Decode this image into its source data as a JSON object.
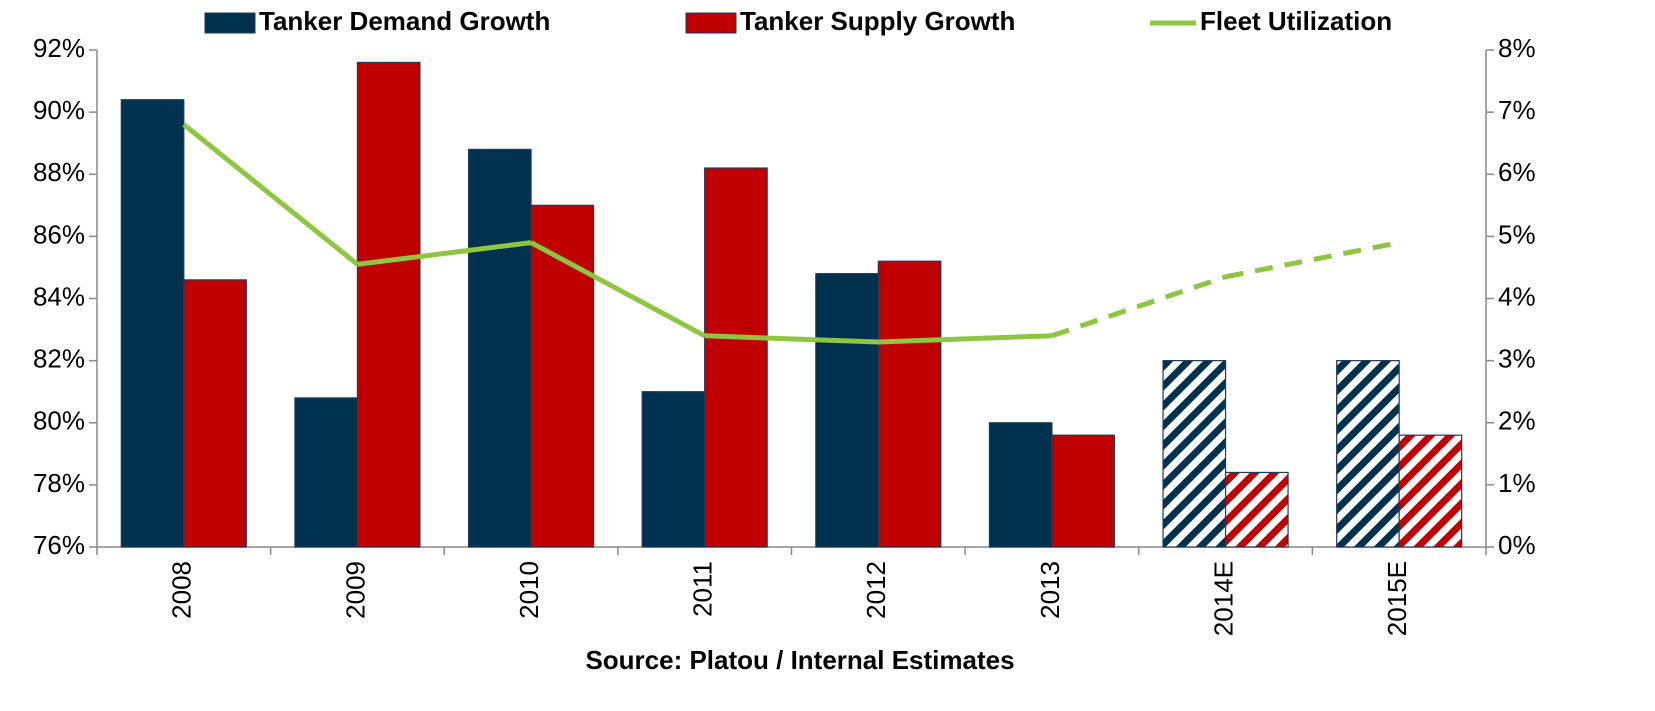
{
  "chart_data": {
    "type": "bar",
    "categories": [
      "2008",
      "2009",
      "2010",
      "2011",
      "2012",
      "2013",
      "2014E",
      "2015E"
    ],
    "estimated": [
      false,
      false,
      false,
      false,
      false,
      false,
      true,
      true
    ],
    "series": [
      {
        "name": "Tanker Demand Growth",
        "color": "#00324f",
        "type": "bar",
        "axis": "y2",
        "values": [
          7.2,
          2.4,
          6.4,
          2.5,
          4.4,
          2.0,
          3.0,
          3.0
        ]
      },
      {
        "name": "Tanker Supply Growth",
        "color": "#c00000",
        "type": "bar",
        "axis": "y2",
        "values": [
          4.3,
          7.8,
          5.5,
          6.1,
          4.6,
          1.8,
          1.2,
          1.8
        ]
      },
      {
        "name": "Fleet Utilization",
        "color": "#8dc63f",
        "type": "line",
        "axis": "y",
        "values": [
          89.6,
          85.1,
          85.8,
          82.8,
          82.6,
          82.8,
          84.7,
          85.8
        ]
      }
    ],
    "ylim": [
      76,
      92
    ],
    "yticks": [
      {
        "value": 76,
        "label": "76%"
      },
      {
        "value": 78,
        "label": "78%"
      },
      {
        "value": 80,
        "label": "80%"
      },
      {
        "value": 82,
        "label": "82%"
      },
      {
        "value": 84,
        "label": "84%"
      },
      {
        "value": 86,
        "label": "86%"
      },
      {
        "value": 88,
        "label": "88%"
      },
      {
        "value": 90,
        "label": "90%"
      },
      {
        "value": 92,
        "label": "92%"
      }
    ],
    "y2lim": [
      0,
      8
    ],
    "y2ticks": [
      {
        "value": 0,
        "label": "0%"
      },
      {
        "value": 1,
        "label": "1%"
      },
      {
        "value": 2,
        "label": "2%"
      },
      {
        "value": 3,
        "label": "3%"
      },
      {
        "value": 4,
        "label": "4%"
      },
      {
        "value": 5,
        "label": "5%"
      },
      {
        "value": 6,
        "label": "6%"
      },
      {
        "value": 7,
        "label": "7%"
      },
      {
        "value": 8,
        "label": "8%"
      }
    ],
    "xlabel": "Source: Platou / Internal Estimates",
    "legend": "top"
  }
}
